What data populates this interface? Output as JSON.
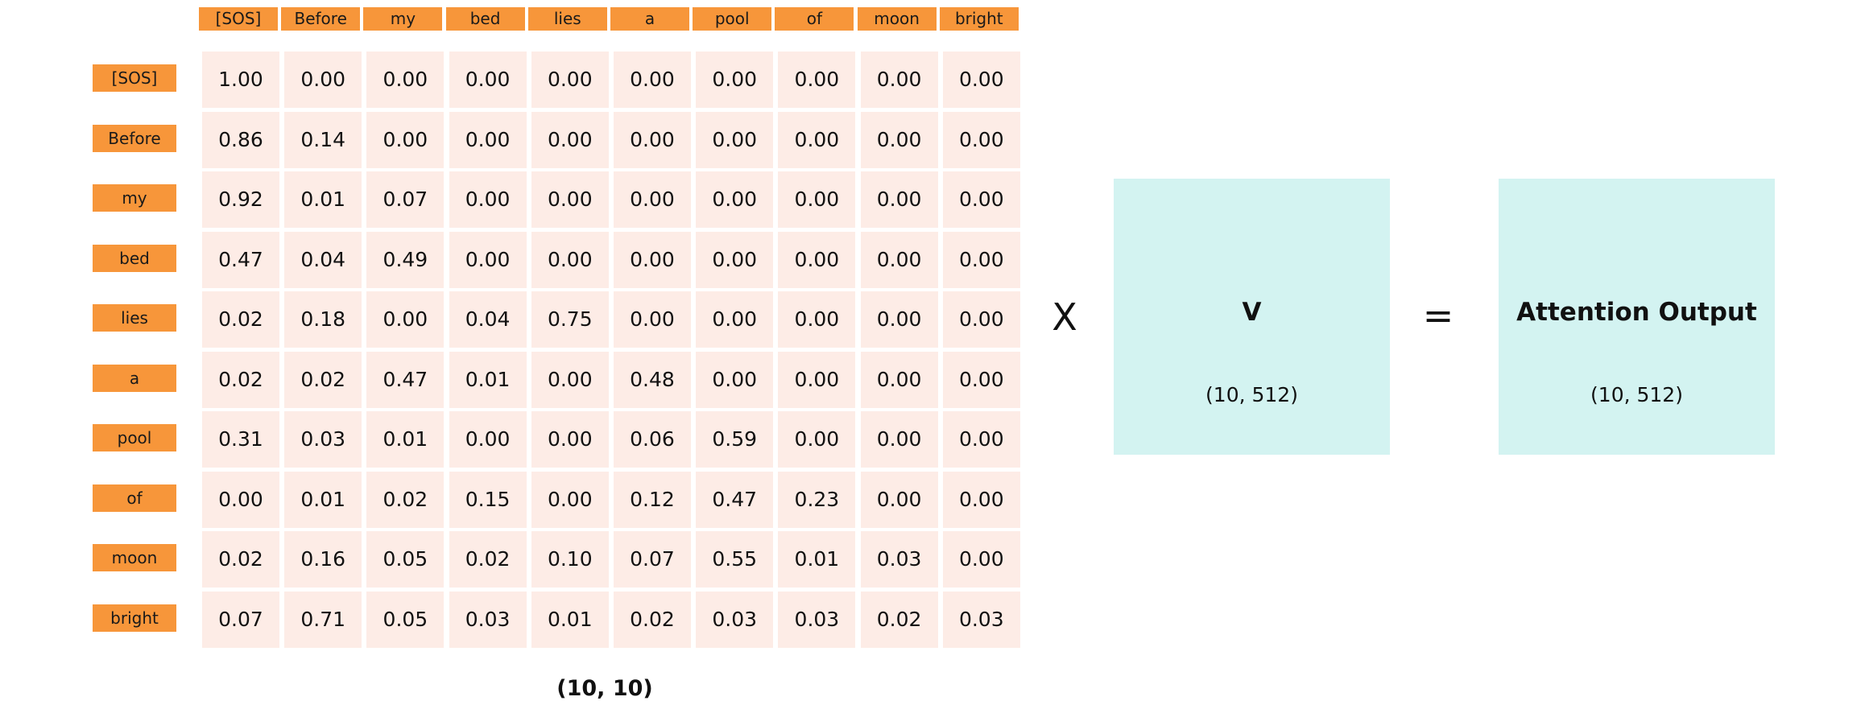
{
  "tokens": [
    "[SOS]",
    "Before",
    "my",
    "bed",
    "lies",
    "a",
    "pool",
    "of",
    "moon",
    "bright"
  ],
  "attention_matrix": [
    [
      "1.00",
      "0.00",
      "0.00",
      "0.00",
      "0.00",
      "0.00",
      "0.00",
      "0.00",
      "0.00",
      "0.00"
    ],
    [
      "0.86",
      "0.14",
      "0.00",
      "0.00",
      "0.00",
      "0.00",
      "0.00",
      "0.00",
      "0.00",
      "0.00"
    ],
    [
      "0.92",
      "0.01",
      "0.07",
      "0.00",
      "0.00",
      "0.00",
      "0.00",
      "0.00",
      "0.00",
      "0.00"
    ],
    [
      "0.47",
      "0.04",
      "0.49",
      "0.00",
      "0.00",
      "0.00",
      "0.00",
      "0.00",
      "0.00",
      "0.00"
    ],
    [
      "0.02",
      "0.18",
      "0.00",
      "0.04",
      "0.75",
      "0.00",
      "0.00",
      "0.00",
      "0.00",
      "0.00"
    ],
    [
      "0.02",
      "0.02",
      "0.47",
      "0.01",
      "0.00",
      "0.48",
      "0.00",
      "0.00",
      "0.00",
      "0.00"
    ],
    [
      "0.31",
      "0.03",
      "0.01",
      "0.00",
      "0.00",
      "0.06",
      "0.59",
      "0.00",
      "0.00",
      "0.00"
    ],
    [
      "0.00",
      "0.01",
      "0.02",
      "0.15",
      "0.00",
      "0.12",
      "0.47",
      "0.23",
      "0.00",
      "0.00"
    ],
    [
      "0.02",
      "0.16",
      "0.05",
      "0.02",
      "0.10",
      "0.07",
      "0.55",
      "0.01",
      "0.03",
      "0.00"
    ],
    [
      "0.07",
      "0.71",
      "0.05",
      "0.03",
      "0.01",
      "0.02",
      "0.03",
      "0.03",
      "0.02",
      "0.03"
    ]
  ],
  "matrix_shape": "(10, 10)",
  "operators": {
    "multiply": "X",
    "equals": "="
  },
  "v_box": {
    "title": "V",
    "shape": "(10, 512)"
  },
  "output_box": {
    "title": "Attention Output",
    "shape": "(10, 512)"
  },
  "colors": {
    "header_orange": "#f7963a",
    "cell_pink": "#fdece6",
    "box_teal": "#d3f3f1"
  }
}
